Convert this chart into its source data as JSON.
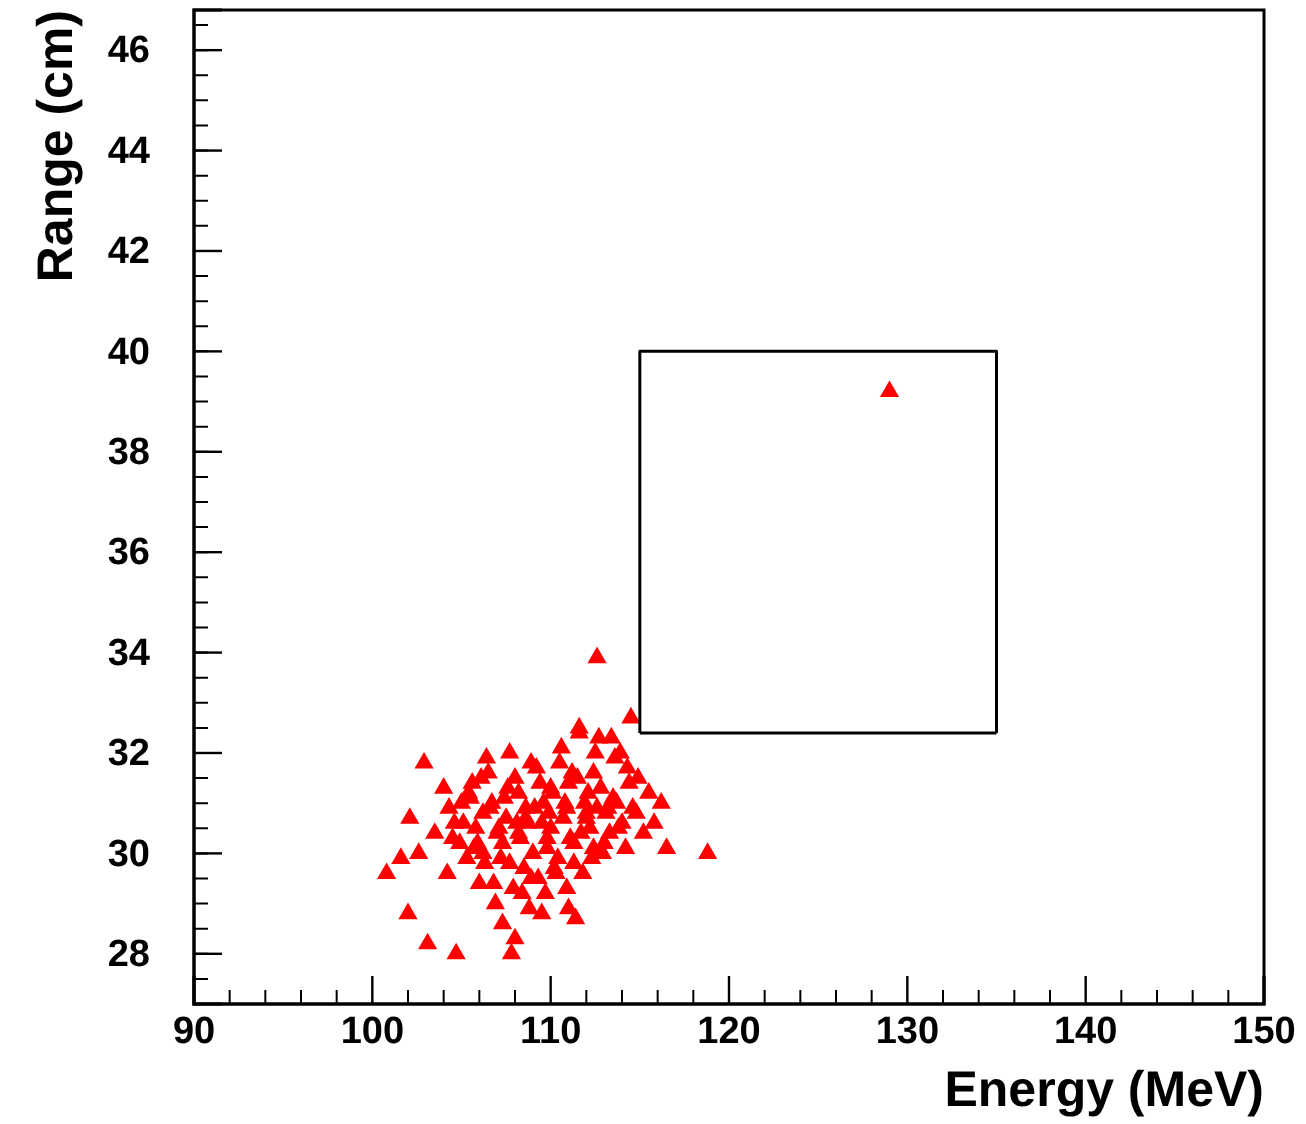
{
  "chart_data": {
    "type": "scatter",
    "xlabel": "Energy (MeV)",
    "ylabel": "Range (cm)",
    "xlim": [
      90,
      150
    ],
    "ylim": [
      27,
      46.8
    ],
    "xticks": [
      90,
      100,
      110,
      120,
      130,
      140,
      150
    ],
    "yticks": [
      28,
      30,
      32,
      34,
      36,
      38,
      40,
      42,
      44,
      46
    ],
    "grid": false,
    "marker": "triangle",
    "series": [
      {
        "color": "#ff0000",
        "x": [
          100.8,
          102.0,
          103.1,
          104.7,
          107.8,
          102.1,
          102.9,
          112.6,
          118.8,
          129.0,
          114.5,
          116.5,
          116.2,
          101.6,
          102.6,
          103.5,
          104.2,
          104.0,
          104.6,
          105.0,
          105.3,
          105.6,
          105.9,
          106.2,
          106.5,
          106.8,
          107.1,
          107.4,
          107.7,
          108.0,
          108.3,
          108.6,
          108.9,
          109.2,
          109.5,
          109.8,
          110.1,
          110.4,
          110.7,
          111.0,
          111.3,
          111.6,
          111.9,
          112.2,
          112.5,
          112.8,
          113.1,
          113.4,
          113.7,
          114.0,
          114.3,
          114.6,
          114.9,
          115.2,
          115.5,
          115.8,
          104.3,
          104.9,
          105.4,
          105.8,
          106.3,
          106.7,
          107.0,
          107.5,
          107.9,
          108.2,
          108.7,
          109.0,
          109.4,
          109.9,
          110.3,
          110.8,
          111.2,
          111.7,
          112.1,
          112.6,
          113.0,
          113.5,
          113.9,
          114.4,
          105.1,
          105.7,
          106.1,
          106.6,
          107.2,
          107.6,
          108.1,
          108.5,
          109.1,
          109.6,
          110.0,
          110.5,
          111.1,
          111.5,
          112.0,
          112.4,
          113.2,
          113.6,
          114.2,
          114.8,
          106.0,
          106.9,
          107.3,
          108.4,
          108.8,
          109.3,
          109.7,
          110.2,
          110.9,
          111.4,
          111.8,
          112.3,
          112.9,
          113.3,
          106.4,
          107.7,
          108.9,
          110.6,
          111.6,
          112.7,
          105.5,
          108.0,
          109.5,
          111.0,
          104.5,
          106.2,
          107.3,
          108.2,
          109.8,
          111.3,
          112.4,
          113.8,
          110.0,
          108.6,
          110.9,
          112.0
        ],
        "values": [
          29.6,
          28.8,
          28.2,
          28.0,
          28.0,
          30.7,
          31.8,
          33.9,
          30.0,
          39.2,
          32.7,
          30.1,
          31.0,
          29.9,
          30.0,
          30.4,
          29.6,
          31.3,
          30.6,
          31.0,
          29.9,
          31.4,
          30.2,
          30.8,
          31.6,
          29.4,
          30.5,
          31.1,
          29.8,
          31.5,
          30.3,
          30.9,
          29.5,
          31.7,
          30.6,
          30.1,
          31.2,
          29.9,
          30.7,
          31.4,
          30.2,
          32.4,
          31.0,
          30.5,
          32.0,
          31.3,
          30.8,
          32.3,
          31.0,
          30.6,
          31.7,
          30.9,
          31.5,
          30.4,
          31.2,
          30.6,
          30.9,
          30.2,
          31.2,
          30.5,
          29.8,
          31.0,
          30.4,
          30.7,
          29.3,
          31.2,
          30.6,
          30.0,
          31.4,
          30.8,
          29.6,
          31.0,
          31.6,
          30.4,
          31.2,
          30.9,
          30.2,
          31.1,
          32.0,
          31.4,
          30.6,
          30.1,
          31.5,
          30.9,
          29.9,
          31.3,
          30.6,
          29.7,
          30.9,
          31.0,
          30.5,
          31.8,
          30.3,
          31.5,
          30.7,
          31.6,
          30.9,
          31.9,
          30.1,
          30.8,
          29.4,
          29.0,
          28.6,
          29.2,
          28.9,
          29.5,
          29.2,
          29.7,
          29.3,
          28.7,
          29.6,
          29.9,
          30.0,
          30.4,
          31.9,
          32.0,
          31.8,
          32.1,
          32.5,
          32.3,
          31.1,
          28.3,
          28.8,
          28.9,
          30.3,
          30.0,
          30.2,
          30.4,
          30.3,
          29.8,
          30.1,
          30.5,
          31.3,
          30.7,
          30.9,
          30.8
        ]
      },
      {
        "type": "line",
        "marker": "none",
        "color": "#000000",
        "x": [
          115,
          115,
          135,
          135
        ],
        "values": [
          32.4,
          40,
          40,
          32.4
        ]
      },
      {
        "type": "line",
        "marker": "none",
        "color": "#000000",
        "x": [
          115,
          135
        ],
        "values": [
          32.4,
          32.4
        ]
      }
    ]
  }
}
